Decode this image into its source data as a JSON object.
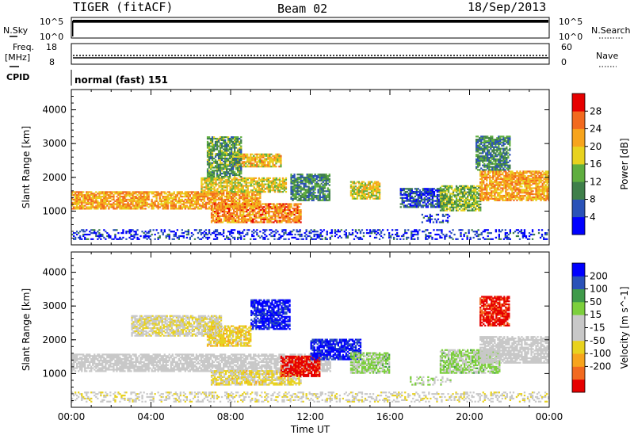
{
  "header": {
    "title": "TIGER (fitACF)",
    "beam": "Beam 02",
    "date": "18/Sep/2013"
  },
  "top_panels": {
    "nsky_label": "N.Sky",
    "nsky_top": "10^5",
    "nsky_bottom": "10^0",
    "nsearch_label": "N.Search",
    "nsearch_top": "10^5",
    "nsearch_bottom": "10^0",
    "freq_label": "Freq.",
    "freq_unit": "[MHz]",
    "freq_top": "18",
    "freq_bottom": "8",
    "nave_label": "Nave",
    "nave_top": "60",
    "nave_bottom": "0",
    "cpid_label": "CPID",
    "cpid_value": "normal (fast) 151"
  },
  "chart_data": [
    {
      "type": "heatmap",
      "name": "power",
      "ylabel": "Slant Range [km]",
      "xlabel": "",
      "ylim": [
        0,
        4600
      ],
      "xlim": [
        0,
        24
      ],
      "yticks": [
        "1000",
        "2000",
        "3000",
        "4000"
      ],
      "colorbar_label": "Power [dB]",
      "colorbar_ticks": [
        "4",
        "8",
        "12",
        "16",
        "20",
        "24",
        "28"
      ],
      "colorbar_range": [
        0,
        32
      ],
      "colorbar_colors": [
        "#0000ff",
        "#2a52b8",
        "#3f7f4a",
        "#5fae3f",
        "#e8d21e",
        "#f7a41c",
        "#f26a1f",
        "#e60000"
      ],
      "regions": [
        {
          "t0": 0.0,
          "t1": 9.5,
          "r0": 1050,
          "r1": 1550,
          "level": 22
        },
        {
          "t0": 6.5,
          "t1": 10.8,
          "r0": 1550,
          "r1": 2000,
          "level": 18
        },
        {
          "t0": 7.0,
          "t1": 11.5,
          "r0": 650,
          "r1": 1200,
          "level": 24
        },
        {
          "t0": 8.0,
          "t1": 10.5,
          "r0": 2300,
          "r1": 2700,
          "level": 20
        },
        {
          "t0": 6.8,
          "t1": 8.5,
          "r0": 2000,
          "r1": 3200,
          "level": 12
        },
        {
          "t0": 11.0,
          "t1": 13.0,
          "r0": 1300,
          "r1": 2100,
          "level": 10
        },
        {
          "t0": 14.0,
          "t1": 15.5,
          "r0": 1350,
          "r1": 1850,
          "level": 18
        },
        {
          "t0": 16.5,
          "t1": 18.5,
          "r0": 1100,
          "r1": 1650,
          "level": 6
        },
        {
          "t0": 17.5,
          "t1": 19.0,
          "r0": 650,
          "r1": 900,
          "level": 6
        },
        {
          "t0": 18.5,
          "t1": 20.5,
          "r0": 1000,
          "r1": 1750,
          "level": 14
        },
        {
          "t0": 20.5,
          "t1": 24.0,
          "r0": 1300,
          "r1": 2200,
          "level": 22
        },
        {
          "t0": 20.3,
          "t1": 22.0,
          "r0": 2200,
          "r1": 3200,
          "level": 10
        },
        {
          "t0": 0.0,
          "t1": 24.0,
          "r0": 150,
          "r1": 450,
          "level": 4
        }
      ]
    },
    {
      "type": "heatmap",
      "name": "velocity",
      "ylabel": "Slant Range [km]",
      "xlabel": "Time UT",
      "ylim": [
        0,
        4600
      ],
      "xlim": [
        0,
        24
      ],
      "xticks": [
        "00:00",
        "04:00",
        "08:00",
        "12:00",
        "16:00",
        "20:00",
        "00:00"
      ],
      "yticks": [
        "1000",
        "2000",
        "3000",
        "4000"
      ],
      "colorbar_label": "Velocity [m s^-1]",
      "colorbar_ticks": [
        "200",
        "100",
        "50",
        "15",
        "-15",
        "-50",
        "-100",
        "-200"
      ],
      "colorbar_range": [
        -250,
        250
      ],
      "colorbar_colors": [
        "#e60000",
        "#f26a1f",
        "#f7a41c",
        "#e8d21e",
        "#c8c8c8",
        "#c8c8c8",
        "#7ccf3c",
        "#3f9a4a",
        "#2a52b8",
        "#0000ff"
      ],
      "regions": [
        {
          "t0": 0.0,
          "t1": 13.0,
          "r0": 1050,
          "r1": 1550,
          "level": 0
        },
        {
          "t0": 7.0,
          "t1": 11.5,
          "r0": 650,
          "r1": 1100,
          "level": -60
        },
        {
          "t0": 9.0,
          "t1": 11.0,
          "r0": 2300,
          "r1": 3200,
          "level": 220
        },
        {
          "t0": 6.8,
          "t1": 9.0,
          "r0": 1800,
          "r1": 2400,
          "level": -80
        },
        {
          "t0": 10.5,
          "t1": 12.5,
          "r0": 900,
          "r1": 1500,
          "level": -220
        },
        {
          "t0": 12.0,
          "t1": 14.5,
          "r0": 1400,
          "r1": 2000,
          "level": 210
        },
        {
          "t0": 14.0,
          "t1": 16.0,
          "r0": 1000,
          "r1": 1600,
          "level": 60
        },
        {
          "t0": 17.0,
          "t1": 19.0,
          "r0": 650,
          "r1": 900,
          "level": 40
        },
        {
          "t0": 18.5,
          "t1": 21.5,
          "r0": 1000,
          "r1": 1700,
          "level": 60
        },
        {
          "t0": 20.5,
          "t1": 24.0,
          "r0": 1300,
          "r1": 2100,
          "level": 0
        },
        {
          "t0": 20.5,
          "t1": 22.0,
          "r0": 2400,
          "r1": 3300,
          "level": -220
        },
        {
          "t0": 3.0,
          "t1": 7.5,
          "r0": 2100,
          "r1": 2700,
          "level": -40
        },
        {
          "t0": 0.0,
          "t1": 24.0,
          "r0": 150,
          "r1": 450,
          "level": -30
        }
      ]
    }
  ]
}
